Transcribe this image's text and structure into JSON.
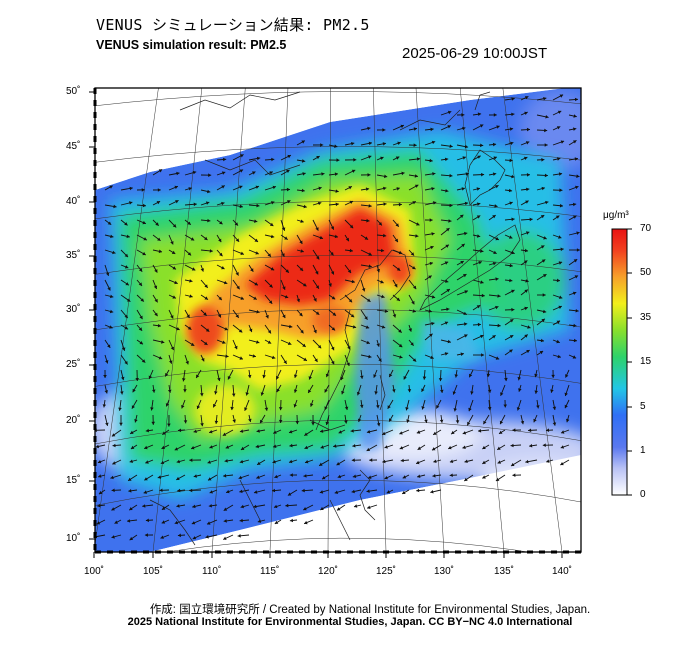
{
  "header": {
    "title_jp": "VENUS シミュレーション結果: PM2.5",
    "title_en": "VENUS simulation result: PM2.5",
    "timestamp": "2025-06-29 10:00JST"
  },
  "axes": {
    "lon_labels": [
      "100˚",
      "105˚",
      "110˚",
      "115˚",
      "120˚",
      "125˚",
      "130˚",
      "135˚",
      "140˚"
    ],
    "lat_labels": [
      "50˚",
      "45˚",
      "40˚",
      "35˚",
      "30˚",
      "25˚",
      "20˚",
      "15˚",
      "10˚"
    ]
  },
  "colorbar": {
    "unit": "μg/m³",
    "ticks": [
      "70",
      "50",
      "35",
      "15",
      "5",
      "1",
      "0"
    ],
    "colors": [
      "#ffffff",
      "#7a8ef0",
      "#2f6ff5",
      "#22c6e6",
      "#2ed36a",
      "#8ae02c",
      "#f2ef1c",
      "#f7a02a",
      "#f2401f",
      "#e81212"
    ]
  },
  "credits": {
    "line1": "作成: 国立環境研究所 / Created by National Institute for Environmental Studies, Japan.",
    "line2": "2025 National Institute for Environmental Studies, Japan. CC BY−NC 4.0 International"
  }
}
